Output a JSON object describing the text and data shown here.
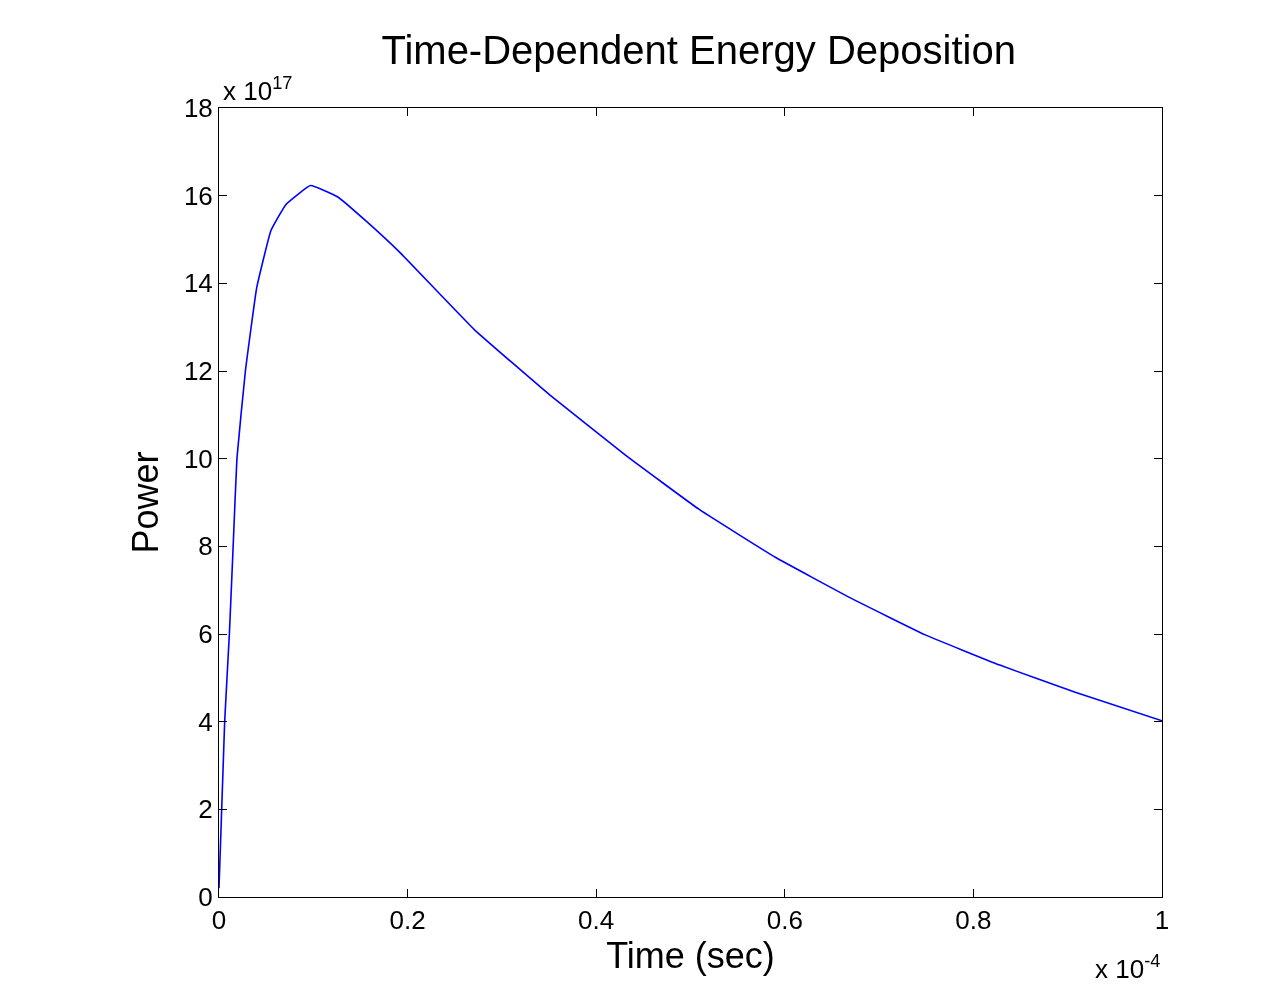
{
  "chart_data": {
    "type": "line",
    "title": "Time-Dependent Energy Deposition",
    "xlabel": "Time (sec)",
    "ylabel": "Power",
    "annotations": [
      "x 10$^{17}$",
      "x 10$^{-4}$"
    ],
    "x": [
      0,
      0.006,
      0.011,
      0.015,
      0.019,
      0.028,
      0.04,
      0.055,
      0.071,
      0.097,
      0.126,
      0.157,
      0.192,
      0.271,
      0.351,
      0.431,
      0.51,
      0.59,
      0.669,
      0.749,
      0.828,
      0.908,
      1
    ],
    "series": [
      {
        "color": "#0000ff",
        "values": [
          0.2,
          4,
          6,
          8,
          10,
          12,
          13.9,
          15.2,
          15.8,
          16.23,
          15.97,
          15.4,
          14.7,
          12.94,
          11.45,
          10.08,
          8.83,
          7.75,
          6.83,
          5.98,
          5.29,
          4.67,
          4.02
        ]
      }
    ],
    "xlim": [
      0,
      1
    ],
    "xticks": [
      0,
      0.2,
      0.4,
      0.6,
      0.8,
      1
    ],
    "ylim": [
      0,
      18
    ],
    "yticks": [
      0,
      2,
      4,
      6,
      8,
      10,
      12,
      14,
      16,
      18
    ],
    "marker": "none",
    "line_style": "solid"
  }
}
